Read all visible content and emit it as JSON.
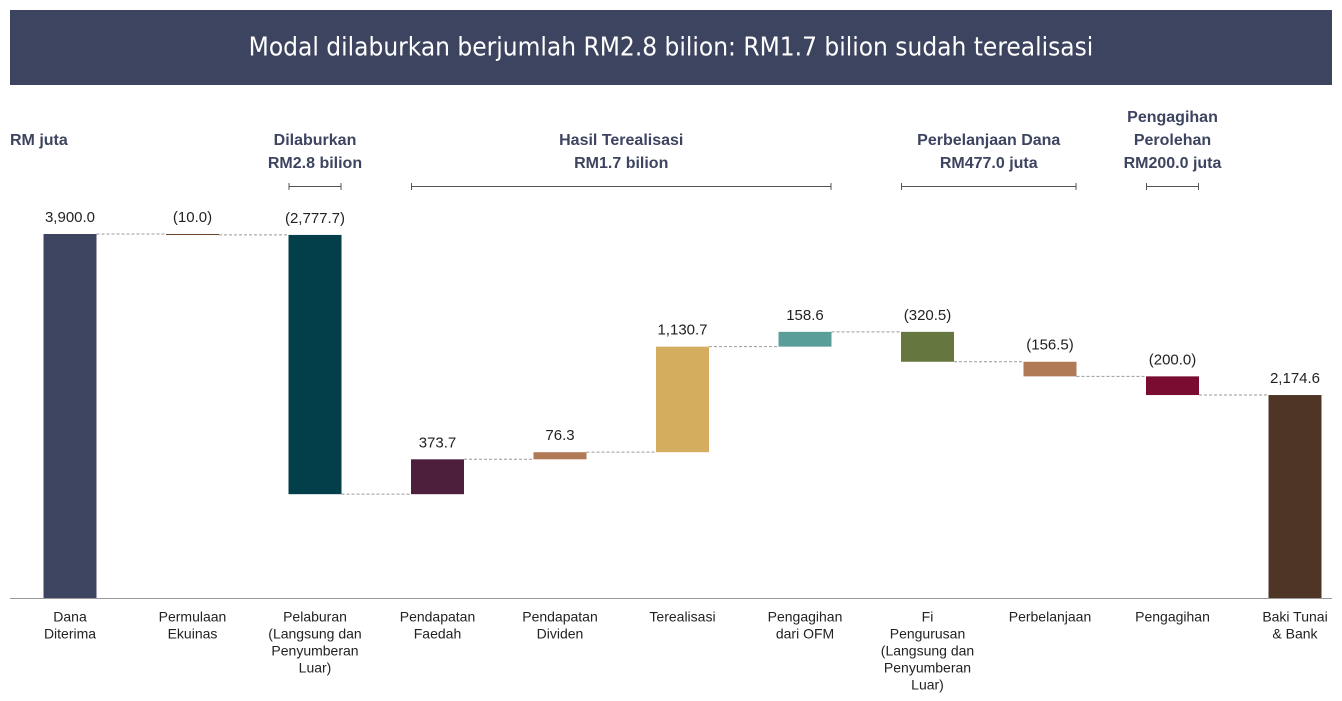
{
  "chart_data": {
    "type": "waterfall",
    "title": "Modal dilaburkan berjumlah RM2.8 bilion: RM1.7 bilion sudah terealisasi",
    "y_label": "RM juta",
    "categories": [
      [
        "Dana",
        "Diterima"
      ],
      [
        "Permulaan",
        "Ekuinas"
      ],
      [
        "Pelaburan",
        "(Langsung dan",
        "Penyumberan",
        "Luar)"
      ],
      [
        "Pendapatan",
        "Faedah"
      ],
      [
        "Pendapatan",
        "Dividen"
      ],
      [
        "Terealisasi"
      ],
      [
        "Pengagihan",
        "dari OFM"
      ],
      [
        "Fi",
        "Pengurusan",
        "(Langsung dan",
        "Penyumberan",
        "Luar)"
      ],
      [
        "Perbelanjaan"
      ],
      [
        "Pengagihan"
      ],
      [
        "Baki Tunai",
        "& Bank"
      ]
    ],
    "values": [
      3900.0,
      -10.0,
      -2777.7,
      373.7,
      76.3,
      1130.7,
      158.6,
      -320.5,
      -156.5,
      -200.0,
      2174.6
    ],
    "value_labels": [
      "3,900.0",
      "(10.0)",
      "(2,777.7)",
      "373.7",
      "76.3",
      "1,130.7",
      "158.6",
      "(320.5)",
      "(156.5)",
      "(200.0)",
      "2,174.6"
    ],
    "measures": [
      "absolute",
      "relative",
      "relative",
      "relative",
      "relative",
      "relative",
      "relative",
      "relative",
      "relative",
      "relative",
      "total"
    ],
    "colors": [
      "#3d4460",
      "#6b4226",
      "#023f4a",
      "#4d1f3c",
      "#b07a57",
      "#d4ae5e",
      "#5a9e9a",
      "#66763f",
      "#b07a57",
      "#7a0c32",
      "#4e3526"
    ],
    "ylim": [
      0,
      3900
    ],
    "groups": [
      {
        "title": [
          "Dilaburkan"
        ],
        "subtitle": "RM2.8 bilion",
        "range": [
          2,
          2
        ]
      },
      {
        "title": [
          "Hasil Terealisasi"
        ],
        "subtitle": "RM1.7 bilion",
        "range": [
          3,
          6
        ]
      },
      {
        "title": [
          "Perbelanjaan Dana"
        ],
        "subtitle": "RM477.0 juta",
        "range": [
          7,
          8
        ]
      },
      {
        "title": [
          "Pengagihan",
          "Perolehan"
        ],
        "subtitle": "RM200.0 juta",
        "range": [
          9,
          9
        ]
      }
    ]
  }
}
